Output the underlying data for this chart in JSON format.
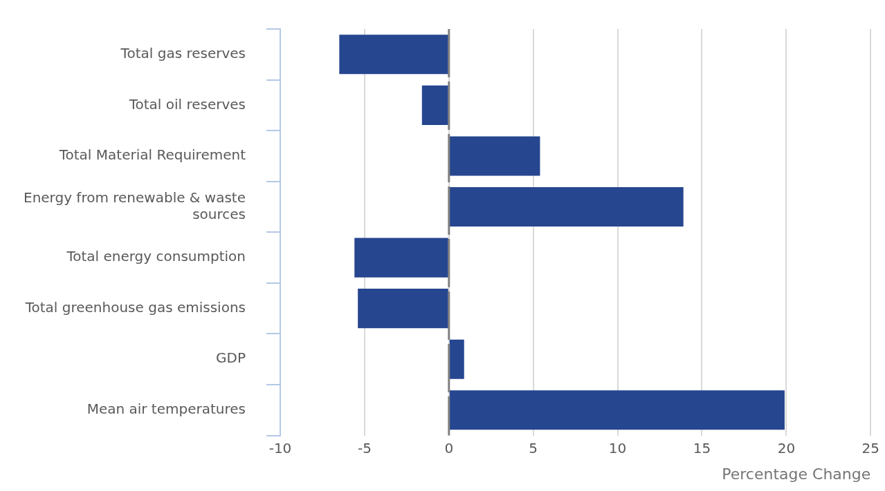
{
  "chart_data": {
    "type": "bar",
    "orientation": "horizontal",
    "xlabel": "Percentage Change",
    "categories": [
      "Total gas reserves",
      "Total oil reserves",
      "Total Material Requirement",
      "Energy from renewable & waste sources",
      "Total energy consumption",
      "Total greenhouse gas emissions",
      "GDP",
      "Mean air temperatures"
    ],
    "values": [
      -6.5,
      -1.6,
      5.4,
      13.9,
      -5.6,
      -5.4,
      0.9,
      19.9
    ],
    "color": "#26468f",
    "xlim": [
      -10,
      25
    ],
    "xticks": [
      -10,
      -5,
      0,
      5,
      10,
      15,
      20,
      25
    ],
    "grid": "x",
    "legend": false,
    "ref_lines": [
      {
        "axis": "x",
        "value": 0,
        "color": "#808080",
        "line_style": "dashed"
      }
    ]
  }
}
